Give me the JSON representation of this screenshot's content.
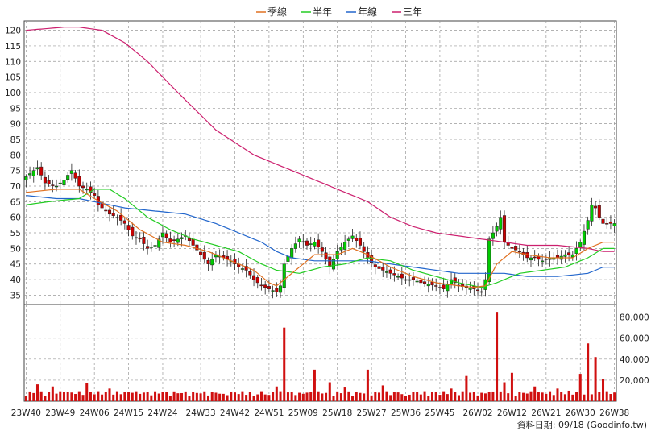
{
  "chart_data": {
    "type": "candlestick+volume",
    "legend": [
      {
        "label": "季線",
        "color": "#e07020"
      },
      {
        "label": "半年",
        "color": "#22cc22"
      },
      {
        "label": "年線",
        "color": "#2266cc"
      },
      {
        "label": "三年",
        "color": "#cc1f6e"
      }
    ],
    "source_note": "資料日期: 09/18 (Goodinfo.tw)",
    "price_axis": {
      "ylim": [
        32,
        123
      ],
      "ticks": [
        35,
        40,
        45,
        50,
        55,
        60,
        65,
        70,
        75,
        80,
        85,
        90,
        95,
        100,
        105,
        110,
        115,
        120
      ],
      "position": "left"
    },
    "volume_axis": {
      "ylim": [
        0,
        92000
      ],
      "ticks": [
        20000,
        40000,
        60000,
        80000
      ],
      "tick_labels": [
        "20,000",
        "40,000",
        "60,000",
        "80,000"
      ],
      "position": "right"
    },
    "x_axis": {
      "tick_labels": [
        "23W40",
        "23W49",
        "24W06",
        "24W15",
        "24W24",
        "24W33",
        "24W42",
        "24W51",
        "25W09",
        "25W18",
        "25W27",
        "25W36",
        "25W45",
        "26W02",
        "26W12",
        "26W21",
        "26W30",
        "26W38"
      ],
      "n_weeks": 156
    },
    "colors": {
      "up": "#00cc00",
      "down": "#cc0000",
      "volume": "#d01010",
      "grid": "#999999",
      "background": "#ffffff"
    },
    "close_keypoints": [
      [
        0,
        73
      ],
      [
        3,
        76
      ],
      [
        5,
        71
      ],
      [
        8,
        70
      ],
      [
        10,
        72
      ],
      [
        12,
        75
      ],
      [
        14,
        70
      ],
      [
        16,
        69
      ],
      [
        18,
        67
      ],
      [
        19,
        64
      ],
      [
        20,
        63
      ],
      [
        22,
        61
      ],
      [
        24,
        60
      ],
      [
        26,
        58
      ],
      [
        28,
        54
      ],
      [
        30,
        53
      ],
      [
        32,
        50
      ],
      [
        34,
        51
      ],
      [
        36,
        55
      ],
      [
        38,
        52
      ],
      [
        40,
        53
      ],
      [
        42,
        54
      ],
      [
        44,
        51
      ],
      [
        46,
        48
      ],
      [
        48,
        45
      ],
      [
        50,
        48
      ],
      [
        52,
        47
      ],
      [
        54,
        46
      ],
      [
        56,
        44
      ],
      [
        58,
        43
      ],
      [
        60,
        40
      ],
      [
        62,
        38
      ],
      [
        64,
        37
      ],
      [
        66,
        36
      ],
      [
        67,
        38
      ],
      [
        68,
        45
      ],
      [
        70,
        50
      ],
      [
        72,
        53
      ],
      [
        74,
        51
      ],
      [
        76,
        52
      ],
      [
        78,
        49
      ],
      [
        80,
        44
      ],
      [
        82,
        49
      ],
      [
        84,
        52
      ],
      [
        86,
        54
      ],
      [
        88,
        51
      ],
      [
        90,
        47
      ],
      [
        92,
        44
      ],
      [
        94,
        43
      ],
      [
        96,
        42
      ],
      [
        98,
        41
      ],
      [
        100,
        40
      ],
      [
        102,
        40
      ],
      [
        104,
        39
      ],
      [
        106,
        38.5
      ],
      [
        108,
        38
      ],
      [
        110,
        37
      ],
      [
        112,
        40
      ],
      [
        114,
        38
      ],
      [
        116,
        37.5
      ],
      [
        118,
        37
      ],
      [
        120,
        36
      ],
      [
        121,
        40
      ],
      [
        122,
        53
      ],
      [
        124,
        57
      ],
      [
        125,
        60
      ],
      [
        126,
        52
      ],
      [
        128,
        50
      ],
      [
        130,
        49
      ],
      [
        132,
        47
      ],
      [
        134,
        47
      ],
      [
        136,
        46
      ],
      [
        138,
        47
      ],
      [
        140,
        47
      ],
      [
        142,
        48
      ],
      [
        144,
        48
      ],
      [
        146,
        52
      ],
      [
        148,
        59
      ],
      [
        149,
        64
      ],
      [
        150,
        63
      ],
      [
        151,
        60
      ],
      [
        152,
        58
      ]
    ],
    "ma_quarter_keypoints": [
      [
        0,
        68
      ],
      [
        8,
        69
      ],
      [
        14,
        69
      ],
      [
        18,
        66
      ],
      [
        24,
        62
      ],
      [
        30,
        56
      ],
      [
        36,
        52
      ],
      [
        42,
        51
      ],
      [
        48,
        49
      ],
      [
        54,
        46
      ],
      [
        60,
        43
      ],
      [
        64,
        39
      ],
      [
        66,
        38
      ],
      [
        70,
        42
      ],
      [
        76,
        48
      ],
      [
        82,
        48
      ],
      [
        86,
        50
      ],
      [
        90,
        48
      ],
      [
        96,
        44
      ],
      [
        102,
        41
      ],
      [
        108,
        39
      ],
      [
        114,
        38
      ],
      [
        118,
        37.5
      ],
      [
        121,
        38
      ],
      [
        124,
        45
      ],
      [
        128,
        49
      ],
      [
        132,
        48
      ],
      [
        138,
        47
      ],
      [
        144,
        47
      ],
      [
        148,
        50
      ],
      [
        152,
        52
      ]
    ],
    "ma_halfyear_keypoints": [
      [
        0,
        64
      ],
      [
        6,
        65
      ],
      [
        14,
        66
      ],
      [
        18,
        69
      ],
      [
        22,
        69
      ],
      [
        26,
        66
      ],
      [
        32,
        60
      ],
      [
        38,
        56
      ],
      [
        44,
        53
      ],
      [
        50,
        51
      ],
      [
        56,
        49
      ],
      [
        62,
        45
      ],
      [
        66,
        43
      ],
      [
        72,
        42
      ],
      [
        78,
        44
      ],
      [
        84,
        45
      ],
      [
        90,
        47
      ],
      [
        96,
        46
      ],
      [
        102,
        43
      ],
      [
        108,
        41
      ],
      [
        114,
        39
      ],
      [
        120,
        37.5
      ],
      [
        124,
        39
      ],
      [
        130,
        42
      ],
      [
        136,
        43
      ],
      [
        142,
        44
      ],
      [
        148,
        47
      ],
      [
        152,
        50
      ]
    ],
    "ma_year_keypoints": [
      [
        0,
        67
      ],
      [
        8,
        66
      ],
      [
        14,
        66
      ],
      [
        18,
        65
      ],
      [
        26,
        63
      ],
      [
        34,
        62
      ],
      [
        42,
        61
      ],
      [
        50,
        58
      ],
      [
        56,
        55
      ],
      [
        62,
        52
      ],
      [
        66,
        49
      ],
      [
        70,
        47
      ],
      [
        76,
        46
      ],
      [
        84,
        46
      ],
      [
        90,
        46
      ],
      [
        96,
        45
      ],
      [
        102,
        44
      ],
      [
        108,
        43
      ],
      [
        114,
        42
      ],
      [
        120,
        42
      ],
      [
        126,
        42
      ],
      [
        132,
        41
      ],
      [
        140,
        41
      ],
      [
        148,
        42
      ],
      [
        152,
        44
      ]
    ],
    "ma_3year_keypoints": [
      [
        0,
        120
      ],
      [
        10,
        121
      ],
      [
        14,
        121
      ],
      [
        20,
        120
      ],
      [
        26,
        116
      ],
      [
        32,
        110
      ],
      [
        40,
        100
      ],
      [
        50,
        88
      ],
      [
        60,
        80
      ],
      [
        70,
        75
      ],
      [
        80,
        70
      ],
      [
        90,
        65
      ],
      [
        96,
        60
      ],
      [
        102,
        57
      ],
      [
        108,
        55
      ],
      [
        114,
        54
      ],
      [
        120,
        53
      ],
      [
        126,
        52
      ],
      [
        132,
        51
      ],
      [
        140,
        51
      ],
      [
        148,
        50
      ],
      [
        152,
        49
      ]
    ],
    "volume_spikes": [
      [
        3,
        16000
      ],
      [
        7,
        14000
      ],
      [
        10,
        9000
      ],
      [
        16,
        17000
      ],
      [
        22,
        12000
      ],
      [
        28,
        8000
      ],
      [
        36,
        9000
      ],
      [
        44,
        9000
      ],
      [
        52,
        7000
      ],
      [
        60,
        5000
      ],
      [
        64,
        6000
      ],
      [
        66,
        14000
      ],
      [
        68,
        70000
      ],
      [
        72,
        8000
      ],
      [
        76,
        30000
      ],
      [
        80,
        18000
      ],
      [
        84,
        13000
      ],
      [
        90,
        30000
      ],
      [
        94,
        15000
      ],
      [
        100,
        5000
      ],
      [
        106,
        5000
      ],
      [
        112,
        12000
      ],
      [
        116,
        24000
      ],
      [
        120,
        8000
      ],
      [
        122,
        9000
      ],
      [
        124,
        85000
      ],
      [
        126,
        18000
      ],
      [
        128,
        27000
      ],
      [
        134,
        14000
      ],
      [
        140,
        12000
      ],
      [
        143,
        10000
      ],
      [
        146,
        26000
      ],
      [
        148,
        55000
      ],
      [
        150,
        42000
      ],
      [
        152,
        21000
      ]
    ]
  }
}
